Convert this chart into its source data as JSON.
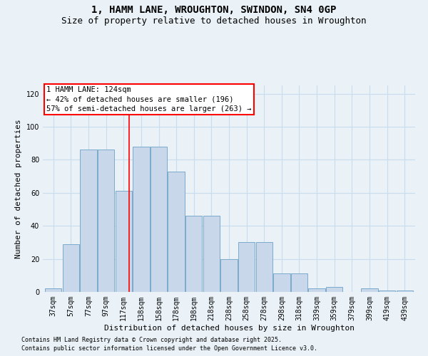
{
  "title": "1, HAMM LANE, WROUGHTON, SWINDON, SN4 0GP",
  "subtitle": "Size of property relative to detached houses in Wroughton",
  "xlabel": "Distribution of detached houses by size in Wroughton",
  "ylabel": "Number of detached properties",
  "categories": [
    "37sqm",
    "57sqm",
    "77sqm",
    "97sqm",
    "117sqm",
    "138sqm",
    "158sqm",
    "178sqm",
    "198sqm",
    "218sqm",
    "238sqm",
    "258sqm",
    "278sqm",
    "298sqm",
    "318sqm",
    "339sqm",
    "359sqm",
    "379sqm",
    "399sqm",
    "419sqm",
    "439sqm"
  ],
  "values": [
    2,
    29,
    86,
    86,
    61,
    88,
    88,
    73,
    46,
    46,
    20,
    30,
    30,
    11,
    11,
    2,
    3,
    0,
    2,
    1,
    1
  ],
  "bar_color": "#c8d8ea",
  "bar_edge_color": "#7aaacc",
  "grid_color": "#c8dced",
  "background_color": "#eaf2f8",
  "ylim": [
    0,
    125
  ],
  "yticks": [
    0,
    20,
    40,
    60,
    80,
    100,
    120
  ],
  "marker_label": "1 HAMM LANE: 124sqm",
  "annotation_line1": "← 42% of detached houses are smaller (196)",
  "annotation_line2": "57% of semi-detached houses are larger (263) →",
  "footnote1": "Contains HM Land Registry data © Crown copyright and database right 2025.",
  "footnote2": "Contains public sector information licensed under the Open Government Licence v3.0.",
  "title_fontsize": 10,
  "subtitle_fontsize": 9,
  "axis_label_fontsize": 8,
  "tick_fontsize": 7,
  "annotation_fontsize": 7.5,
  "footnote_fontsize": 6
}
